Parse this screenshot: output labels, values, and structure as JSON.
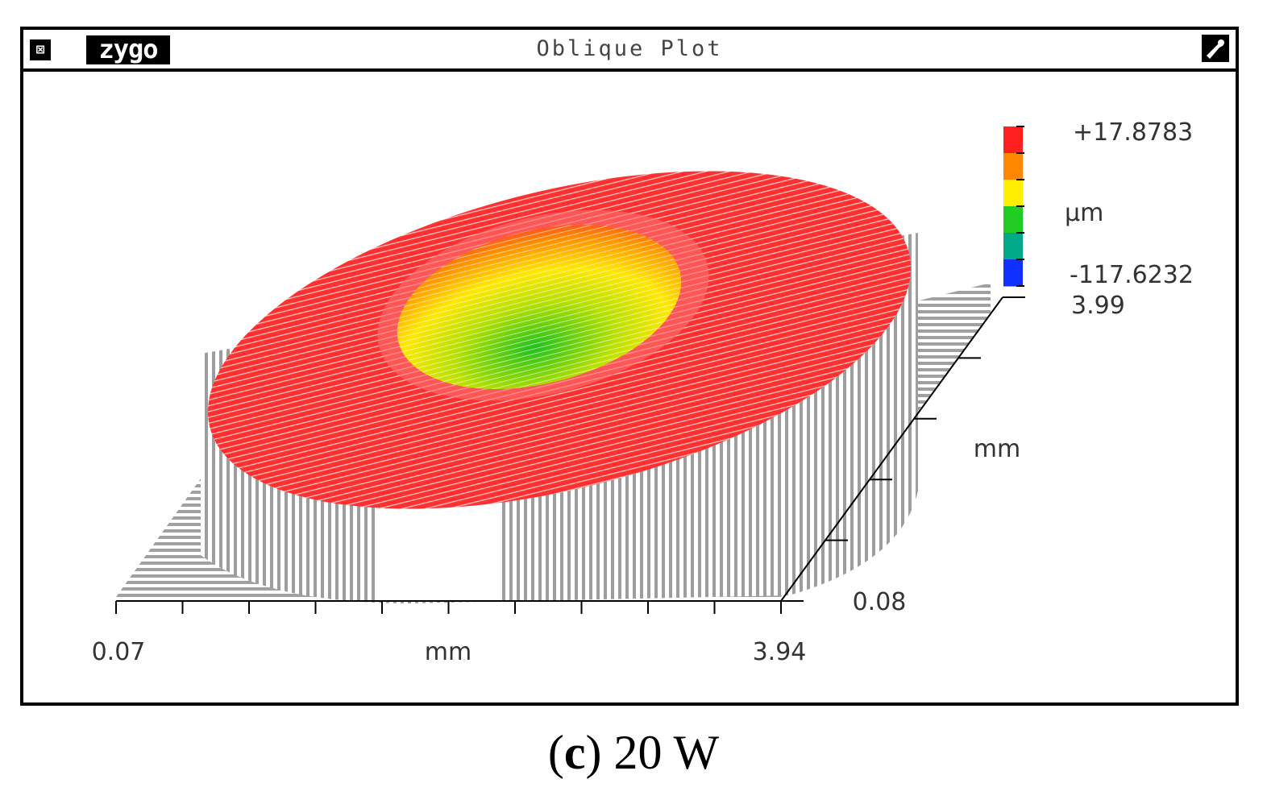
{
  "window": {
    "brand": "zygo",
    "title": "Oblique Plot",
    "close_glyph": "⊠"
  },
  "icons": [
    "close-box-icon",
    "tool-wrench-icon"
  ],
  "chart_data": {
    "type": "3d-surface-oblique",
    "title": "Oblique Plot",
    "x_axis": {
      "label": "mm",
      "min": "0.07",
      "max": "3.94"
    },
    "y_axis": {
      "label": "mm",
      "min": "0.08",
      "max": "3.99"
    },
    "z_colorbar": {
      "label": "µm",
      "max": "+17.8783",
      "min": "-117.6232"
    },
    "colorbar_colors": [
      "#ff2020",
      "#ff8800",
      "#ffee00",
      "#22cc22",
      "#00aa88",
      "#1030ff"
    ]
  },
  "colors": {
    "surface_top": "#ff2a2a",
    "surface_side": "#9a9a9a",
    "crater_warm": "#ff7a00",
    "crater_mid": "#ffe600",
    "crater_low": "#22c922"
  },
  "caption": {
    "letter": "c",
    "text": "20 W"
  }
}
